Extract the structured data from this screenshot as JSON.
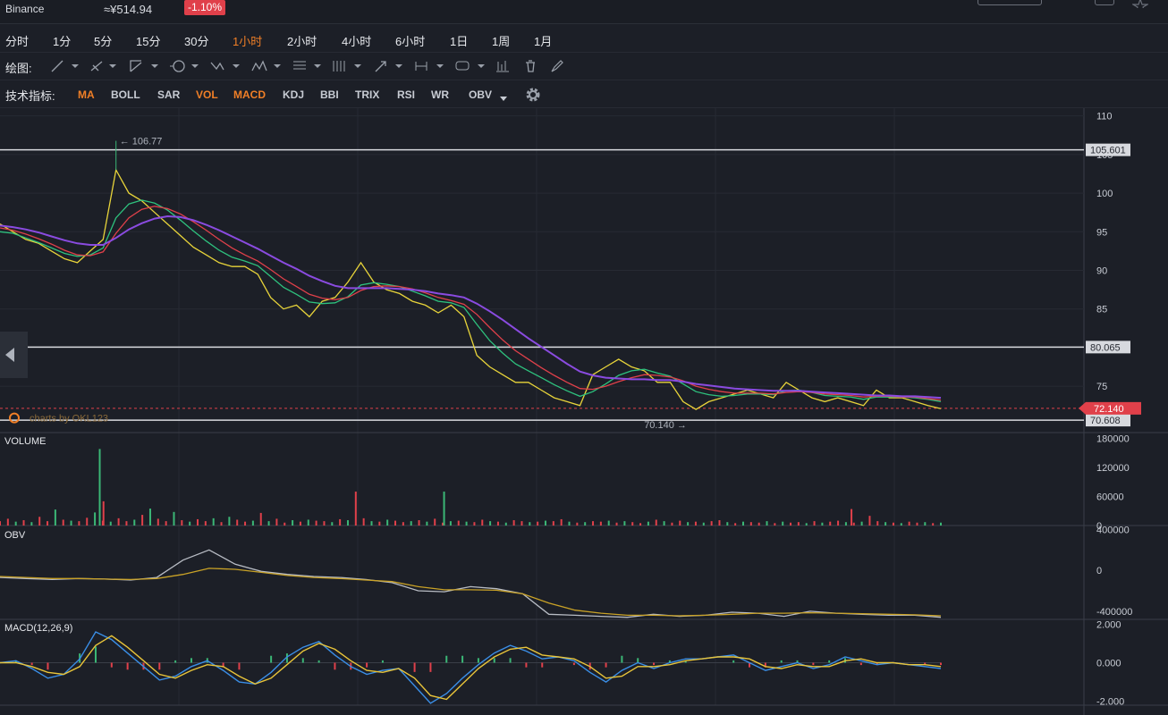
{
  "header": {
    "exchange": "Binance",
    "price": "≈¥514.94",
    "change": "-1.10%",
    "change_color": "#e0404a"
  },
  "timeframes": [
    "分时",
    "1分",
    "5分",
    "15分",
    "30分",
    "1小时",
    "2小时",
    "4小时",
    "6小时",
    "1日",
    "1周",
    "1月"
  ],
  "active_timeframe": "1小时",
  "drawing": {
    "label": "绘图:"
  },
  "indicators": {
    "label": "技术指标:",
    "items": [
      "MA",
      "BOLL",
      "SAR",
      "VOL",
      "MACD",
      "KDJ",
      "BBI",
      "TRIX",
      "RSI",
      "WR",
      "OBV"
    ],
    "active": [
      "MA",
      "VOL",
      "MACD"
    ]
  },
  "colors": {
    "background": "#1c1f27",
    "accent": "#f07f27",
    "up": "#3bb776",
    "down": "#e0404a",
    "ma_slow": "#8a4be0",
    "ma_fast": "#e8d43a",
    "ma_mid": "#2ec27e",
    "ma_red": "#e0404a",
    "obv_line": "#c9a227",
    "macd_dif": "#3a8ee6",
    "macd_dea": "#e8c43a"
  },
  "chart_data": [
    {
      "panel": "price",
      "type": "line",
      "yticks": [
        75,
        80,
        85,
        90,
        95,
        100,
        105,
        110
      ],
      "ylim": [
        69,
        111
      ],
      "high_label": "← 106.77",
      "low_label": "70.140 →",
      "watermark": "charts by OKL123",
      "horizontal_lines": [
        {
          "label": "105.601",
          "value": 105.601
        },
        {
          "label": "80.065",
          "value": 80.065
        },
        {
          "label": "70.608",
          "value": 70.608
        }
      ],
      "last_price": {
        "label": "72.140",
        "value": 72.14
      },
      "series": [
        {
          "values": [
            96.0,
            95.0,
            94.0,
            93.5,
            92.5,
            91.5,
            91.0,
            92.5,
            94.0,
            103.0,
            100.0,
            99.0,
            97.5,
            96.0,
            94.5,
            93.0,
            92.0,
            91.0,
            90.5,
            90.5,
            89.5,
            86.5,
            85.0,
            85.5,
            84.0,
            86.0,
            86.5,
            88.5,
            91.0,
            88.5,
            87.5,
            87.0,
            86.0,
            85.5,
            84.5,
            85.5,
            84.0,
            79.0,
            77.5,
            76.5,
            75.5,
            75.5,
            74.5,
            73.5,
            73.0,
            72.5,
            76.5,
            77.5,
            78.5,
            77.5,
            77.0,
            75.5,
            75.5,
            73.0,
            72.0,
            73.0,
            73.5,
            74.0,
            74.5,
            74.0,
            73.5,
            75.5,
            74.5,
            73.5,
            73.0,
            73.5,
            73.0,
            72.5,
            74.5,
            73.5,
            73.5,
            73.0,
            72.5,
            72.1
          ]
        },
        {
          "values": [
            95.0,
            94.8,
            94.2,
            93.6,
            92.9,
            92.2,
            91.8,
            92.0,
            92.9,
            96.8,
            98.6,
            99.1,
            98.7,
            97.8,
            96.5,
            95.1,
            93.8,
            92.6,
            91.7,
            91.2,
            90.6,
            89.2,
            87.8,
            86.9,
            85.9,
            85.7,
            85.8,
            86.6,
            88.1,
            88.4,
            88.2,
            87.9,
            87.3,
            86.7,
            86.0,
            85.8,
            85.2,
            83.0,
            80.9,
            79.3,
            77.9,
            77.0,
            76.1,
            75.2,
            74.4,
            73.7,
            74.3,
            75.3,
            76.4,
            77.0,
            77.2,
            76.7,
            76.3,
            75.3,
            74.3,
            73.9,
            73.7,
            73.8,
            74.0,
            74.0,
            73.9,
            74.4,
            74.5,
            74.2,
            73.8,
            73.7,
            73.6,
            73.3,
            73.6,
            73.6,
            73.6,
            73.5,
            73.3,
            73.0
          ]
        },
        {
          "values": [
            95.5,
            95.2,
            94.7,
            94.1,
            93.4,
            92.6,
            92.0,
            91.9,
            92.4,
            94.8,
            96.8,
            97.9,
            98.3,
            98.0,
            97.3,
            96.3,
            95.2,
            94.0,
            92.9,
            92.0,
            91.2,
            90.1,
            88.9,
            87.9,
            86.9,
            86.4,
            86.2,
            86.5,
            87.4,
            87.9,
            88.0,
            87.9,
            87.6,
            87.1,
            86.5,
            86.1,
            85.6,
            84.3,
            82.6,
            81.0,
            79.6,
            78.5,
            77.4,
            76.4,
            75.5,
            74.7,
            74.6,
            75.0,
            75.6,
            76.1,
            76.5,
            76.4,
            76.2,
            75.7,
            75.0,
            74.6,
            74.3,
            74.1,
            74.1,
            74.1,
            74.0,
            74.2,
            74.3,
            74.2,
            74.0,
            73.9,
            73.8,
            73.6,
            73.7,
            73.7,
            73.6,
            73.6,
            73.4,
            73.2
          ]
        },
        {
          "values": [
            95.8,
            95.6,
            95.3,
            94.9,
            94.4,
            93.9,
            93.5,
            93.3,
            93.3,
            94.2,
            95.3,
            96.1,
            96.7,
            97.0,
            96.9,
            96.5,
            95.9,
            95.2,
            94.4,
            93.6,
            92.8,
            91.9,
            91.0,
            90.2,
            89.3,
            88.6,
            88.0,
            87.7,
            87.7,
            87.7,
            87.7,
            87.6,
            87.5,
            87.3,
            87.0,
            86.8,
            86.5,
            85.7,
            84.7,
            83.6,
            82.4,
            81.2,
            80.1,
            79.0,
            77.9,
            76.9,
            76.4,
            76.1,
            76.0,
            75.9,
            75.9,
            75.8,
            75.8,
            75.6,
            75.3,
            75.1,
            74.9,
            74.7,
            74.6,
            74.5,
            74.4,
            74.4,
            74.4,
            74.3,
            74.2,
            74.1,
            74.0,
            73.9,
            73.8,
            73.8,
            73.7,
            73.7,
            73.6,
            73.5
          ]
        }
      ]
    },
    {
      "panel": "volume",
      "type": "bar",
      "title": "VOLUME",
      "yticks": [
        0,
        60000,
        120000,
        180000
      ],
      "ylim": [
        0,
        190000
      ],
      "values": [
        9000,
        14000,
        8000,
        11000,
        7000,
        18000,
        9000,
        33000,
        12000,
        10000,
        9000,
        16000,
        27000,
        10000,
        8000,
        15000,
        9000,
        12000,
        22000,
        35000,
        14000,
        9000,
        28000,
        11000,
        8000,
        13000,
        9000,
        15000,
        7000,
        18000,
        12000,
        8000,
        10000,
        26000,
        9000,
        14000,
        6000,
        11000,
        8000,
        12000,
        10000,
        9000,
        7000,
        13000,
        11000,
        70000,
        15000,
        9000,
        8000,
        12000,
        10000,
        7000,
        9000,
        11000,
        8000,
        14000,
        6000,
        9000,
        10000,
        8000,
        7000,
        12000,
        9000,
        8000,
        6000,
        11000,
        9000,
        7000,
        8000,
        10000,
        9000,
        13000,
        8000,
        6000,
        7000,
        9000,
        8000,
        10000,
        6000,
        9000,
        7000,
        5000,
        8000,
        12000,
        9000,
        6000,
        10000,
        7000,
        8000,
        6000,
        9000,
        11000,
        7000,
        5000,
        8000,
        7000,
        6000,
        9000,
        5000,
        8000,
        6000,
        7000,
        5000,
        9000,
        6000,
        8000,
        10000,
        7000,
        6000,
        8000,
        20000,
        9000,
        7000,
        6000,
        5000,
        8000,
        6000,
        7000,
        5000,
        6000
      ],
      "spikes": [
        {
          "at": 0.106,
          "value": 158000
        },
        {
          "at": 0.11,
          "value": 50000
        },
        {
          "at": 0.472,
          "value": 70000
        },
        {
          "at": 0.905,
          "value": 34000
        }
      ]
    },
    {
      "panel": "obv",
      "type": "line",
      "title": "OBV",
      "yticks": [
        -400000,
        0,
        400000
      ],
      "ylim": [
        -480000,
        430000
      ],
      "series": [
        {
          "values": [
            -70000,
            -80000,
            -90000,
            -80000,
            -85000,
            -95000,
            -70000,
            100000,
            200000,
            60000,
            -10000,
            -40000,
            -60000,
            -70000,
            -90000,
            -120000,
            -200000,
            -210000,
            -160000,
            -180000,
            -230000,
            -430000,
            -440000,
            -450000,
            -460000,
            -430000,
            -450000,
            -440000,
            -410000,
            -420000,
            -450000,
            -400000,
            -420000,
            -430000,
            -440000,
            -440000,
            -460000
          ]
        },
        {
          "values": [
            -60000,
            -70000,
            -80000,
            -80000,
            -85000,
            -90000,
            -80000,
            -40000,
            20000,
            10000,
            -20000,
            -50000,
            -70000,
            -80000,
            -95000,
            -110000,
            -160000,
            -190000,
            -190000,
            -195000,
            -230000,
            -320000,
            -390000,
            -420000,
            -440000,
            -440000,
            -445000,
            -440000,
            -430000,
            -420000,
            -420000,
            -415000,
            -420000,
            -425000,
            -430000,
            -435000,
            -445000
          ]
        }
      ]
    },
    {
      "panel": "macd",
      "type": "line",
      "title": "MACD(12,26,9)",
      "yticks": [
        2.0,
        0.0,
        -2.0
      ],
      "tick_labels": [
        "2.000",
        "0.000",
        "-2.000"
      ],
      "ylim": [
        -2.2,
        2.2
      ],
      "series": [
        {
          "values": [
            0.0,
            0.1,
            -0.3,
            -0.8,
            -0.6,
            0.2,
            1.6,
            1.2,
            0.5,
            -0.2,
            -0.9,
            -0.7,
            -0.2,
            0.1,
            -0.4,
            -1.0,
            -1.1,
            -0.5,
            0.3,
            0.8,
            1.1,
            0.4,
            -0.2,
            -0.6,
            -0.4,
            -0.3,
            -1.2,
            -2.1,
            -1.6,
            -0.8,
            -0.1,
            0.5,
            0.9,
            0.6,
            0.2,
            0.3,
            0.1,
            -0.5,
            -1.0,
            -0.4,
            0.0,
            -0.3,
            0.0,
            0.2,
            0.2,
            0.3,
            0.4,
            0.0,
            -0.4,
            -0.2,
            0.0,
            -0.3,
            -0.1,
            0.3,
            0.1,
            -0.1,
            0.0,
            -0.1,
            -0.2,
            -0.3
          ]
        },
        {
          "values": [
            0.0,
            0.0,
            -0.2,
            -0.5,
            -0.6,
            -0.2,
            0.9,
            1.4,
            0.8,
            0.1,
            -0.6,
            -0.8,
            -0.4,
            -0.1,
            -0.2,
            -0.7,
            -1.1,
            -0.8,
            -0.1,
            0.6,
            1.0,
            0.7,
            0.1,
            -0.4,
            -0.5,
            -0.3,
            -0.8,
            -1.7,
            -1.9,
            -1.1,
            -0.3,
            0.3,
            0.7,
            0.8,
            0.4,
            0.3,
            0.2,
            -0.2,
            -0.8,
            -0.7,
            -0.2,
            -0.2,
            -0.1,
            0.1,
            0.2,
            0.3,
            0.3,
            0.2,
            -0.2,
            -0.3,
            -0.1,
            -0.2,
            -0.2,
            0.1,
            0.2,
            0.0,
            0.0,
            -0.1,
            -0.1,
            -0.2
          ]
        }
      ]
    }
  ]
}
